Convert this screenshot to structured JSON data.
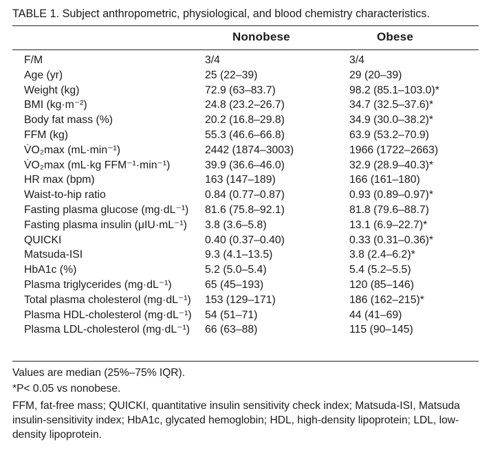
{
  "caption": "TABLE 1. Subject anthropometric, physiological, and blood chemistry characteristics.",
  "columns": [
    "",
    "Nonobese",
    "Obese"
  ],
  "rows": [
    {
      "label": "F/M",
      "nonobese": "3/4",
      "obese": "3/4"
    },
    {
      "label": "Age (yr)",
      "nonobese": "25 (22–39)",
      "obese": "29 (20–39)"
    },
    {
      "label": "Weight (kg)",
      "nonobese": "72.9 (63–83.7)",
      "obese": "98.2 (85.1–103.0)*"
    },
    {
      "label": "BMI (kg·m⁻²)",
      "nonobese": "24.8 (23.2–26.7)",
      "obese": "34.7 (32.5–37.6)*"
    },
    {
      "label": "Body fat mass (%)",
      "nonobese": "20.2 (16.8–29.8)",
      "obese": "34.9 (30.0–38.2)*"
    },
    {
      "label": "FFM (kg)",
      "nonobese": "55.3 (46.6–66.8)",
      "obese": "63.9 (53.2–70.9)"
    },
    {
      "label": "V̇O₂max (mL·min⁻¹)",
      "nonobese": "2442 (1874–3003)",
      "obese": "1966 (1722–2663)"
    },
    {
      "label": "V̇O₂max (mL·kg FFM⁻¹·min⁻¹)",
      "nonobese": "39.9 (36.6–46.0)",
      "obese": "32.9 (28.9–40.3)*"
    },
    {
      "label": "HR max (bpm)",
      "nonobese": "163 (147–189)",
      "obese": "166 (161–180)"
    },
    {
      "label": "Waist-to-hip ratio",
      "nonobese": "0.84 (0.77–0.87)",
      "obese": "0.93 (0.89–0.97)*"
    },
    {
      "label": "Fasting plasma glucose (mg·dL⁻¹)",
      "nonobese": "81.6 (75.8–92.1)",
      "obese": "81.8 (79.6–88.7)"
    },
    {
      "label": "Fasting plasma insulin (μIU·mL⁻¹)",
      "nonobese": "3.8 (3.6–5.8)",
      "obese": "13.1 (6.9–22.7)*"
    },
    {
      "label": "QUICKI",
      "nonobese": "0.40 (0.37–0.40)",
      "obese": "0.33 (0.31–0.36)*"
    },
    {
      "label": "Matsuda-ISI",
      "nonobese": "9.3 (4.1–13.5)",
      "obese": "3.8 (2.4–6.2)*"
    },
    {
      "label": "HbA1c (%)",
      "nonobese": "5.2 (5.0–5.4)",
      "obese": "5.4 (5.2–5.5)"
    },
    {
      "label": "Plasma triglycerides (mg·dL⁻¹)",
      "nonobese": "65 (45–193)",
      "obese": "120 (85–146)"
    },
    {
      "label": "Total plasma cholesterol (mg·dL⁻¹)",
      "nonobese": "153 (129–171)",
      "obese": "186 (162–215)*"
    },
    {
      "label": "Plasma HDL-cholesterol (mg·dL⁻¹)",
      "nonobese": "54 (51–71)",
      "obese": "44 (41–69)"
    },
    {
      "label": "Plasma LDL-cholesterol (mg·dL⁻¹)",
      "nonobese": "66 (63–88)",
      "obese": "115 (90–145)"
    }
  ],
  "footnotes": [
    "Values are median (25%–75% IQR).",
    "*P< 0.05 vs nonobese.",
    "FFM, fat-free mass; QUICKI, quantitative insulin sensitivity check index; Matsuda-ISI, Matsuda insulin-sensitivity index; HbA1c, glycated hemoglobin; HDL, high-density lipoprotein; LDL, low-density lipoprotein."
  ]
}
